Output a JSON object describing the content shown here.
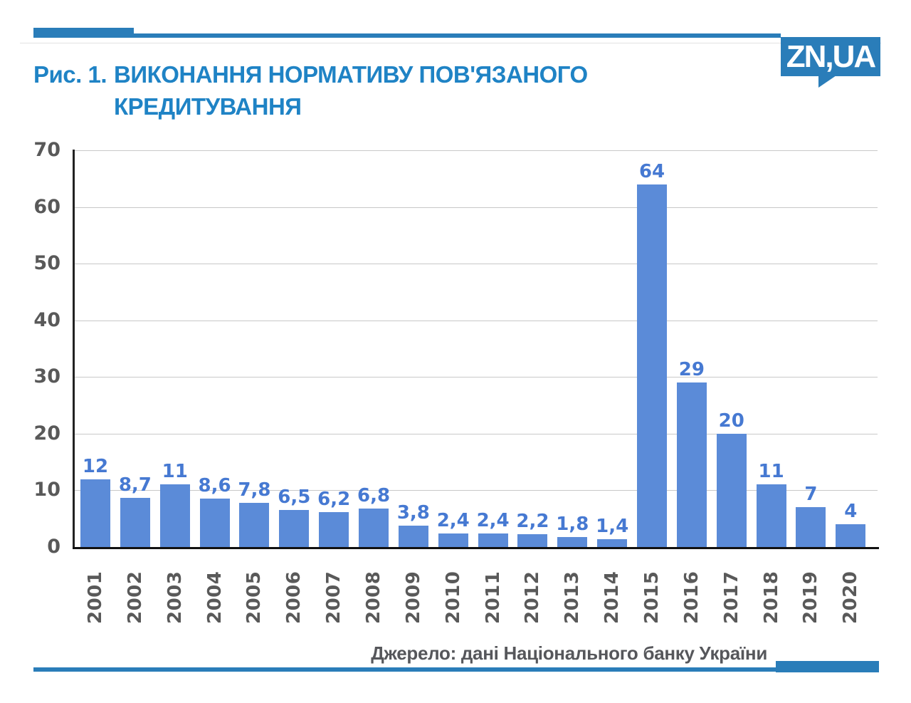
{
  "branding": {
    "logo_text": "ZN,UA",
    "accent_color": "#2a7db9",
    "title_color": "#1f83c5"
  },
  "figure": {
    "label": "Рис. 1.",
    "title_line1": "ВИКОНАННЯ НОРМАТИВУ ПОВ'ЯЗАНОГО",
    "title_line2": "КРЕДИТУВАННЯ"
  },
  "source_note": "Джерело: дані Національного банку України",
  "chart_data": {
    "type": "bar",
    "title": "Рис. 1. Виконання нормативу пов'язаного кредитування",
    "categories": [
      "2001",
      "2002",
      "2003",
      "2004",
      "2005",
      "2006",
      "2007",
      "2008",
      "2009",
      "2010",
      "2011",
      "2012",
      "2013",
      "2014",
      "2015",
      "2016",
      "2017",
      "2018",
      "2019",
      "2020"
    ],
    "values": [
      12,
      8.7,
      11,
      8.6,
      7.8,
      6.5,
      6.2,
      6.8,
      3.8,
      2.4,
      2.4,
      2.2,
      1.8,
      1.4,
      64,
      29,
      20,
      11,
      7,
      4
    ],
    "value_labels": [
      "12",
      "8,7",
      "11",
      "8,6",
      "7,8",
      "6,5",
      "6,2",
      "6,8",
      "3,8",
      "2,4",
      "2,4",
      "2,2",
      "1,8",
      "1,4",
      "64",
      "29",
      "20",
      "11",
      "7",
      "4"
    ],
    "xlabel": "",
    "ylabel": "",
    "ylim": [
      0,
      70
    ],
    "yticks": [
      0,
      10,
      20,
      30,
      40,
      50,
      60,
      70
    ],
    "grid": true,
    "legend": false,
    "bar_color": "#5b8bd8",
    "value_label_color": "#4679d2",
    "axis_text_color": "#595959",
    "gridline_color": "#c8c8c8",
    "source": "Джерело: дані Національного банку України"
  }
}
